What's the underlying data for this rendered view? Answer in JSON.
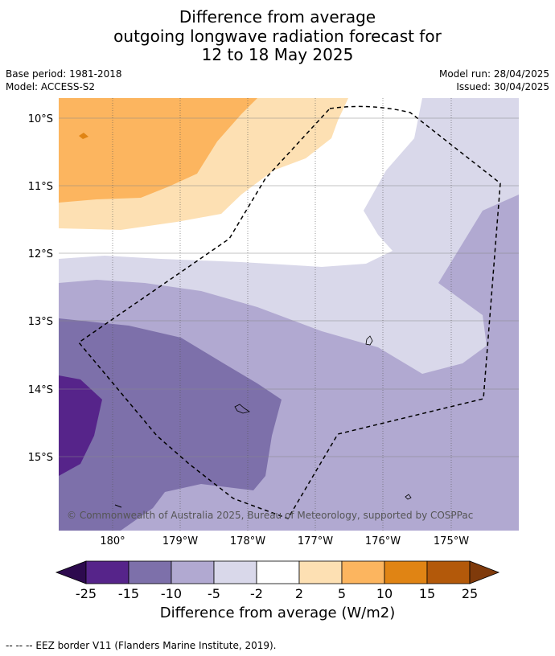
{
  "title": {
    "line1": "Difference from average",
    "line2": "outgoing longwave radiation forecast for",
    "line3": "12 to 18 May 2025"
  },
  "meta": {
    "base_period": "Base period: 1981-2018",
    "model": "Model: ACCESS-S2",
    "model_run": "Model run: 28/04/2025",
    "issued": "Issued: 30/04/2025"
  },
  "map": {
    "lat_labels": [
      "10°S",
      "11°S",
      "12°S",
      "13°S",
      "14°S",
      "15°S"
    ],
    "lon_labels": [
      "180°",
      "179°W",
      "178°W",
      "177°W",
      "176°W",
      "175°W"
    ],
    "copyright": "© Commonwealth of Australia 2025, Bureau of Meteorology, supported by COSPPac",
    "colors": {
      "lt_neg25": "#2d0a4e",
      "neg25_neg15": "#56248a",
      "neg15_neg10": "#7d70aa",
      "neg10_neg5": "#b1a9d1",
      "neg5_neg2": "#d9d8ea",
      "neg2_2": "#ffffff",
      "2_5": "#fde0b3",
      "5_10": "#fcb55f",
      "10_15": "#e08414",
      "15_25": "#b3590a",
      "gt25": "#7f3a0b"
    }
  },
  "colorbar": {
    "ticks": [
      "-25",
      "-15",
      "-10",
      "-5",
      "-2",
      "2",
      "5",
      "10",
      "15",
      "25"
    ],
    "title": "Difference from average (W/m2)"
  },
  "footer": "--  --  -- EEZ border V11 (Flanders Marine Institute, 2019)."
}
